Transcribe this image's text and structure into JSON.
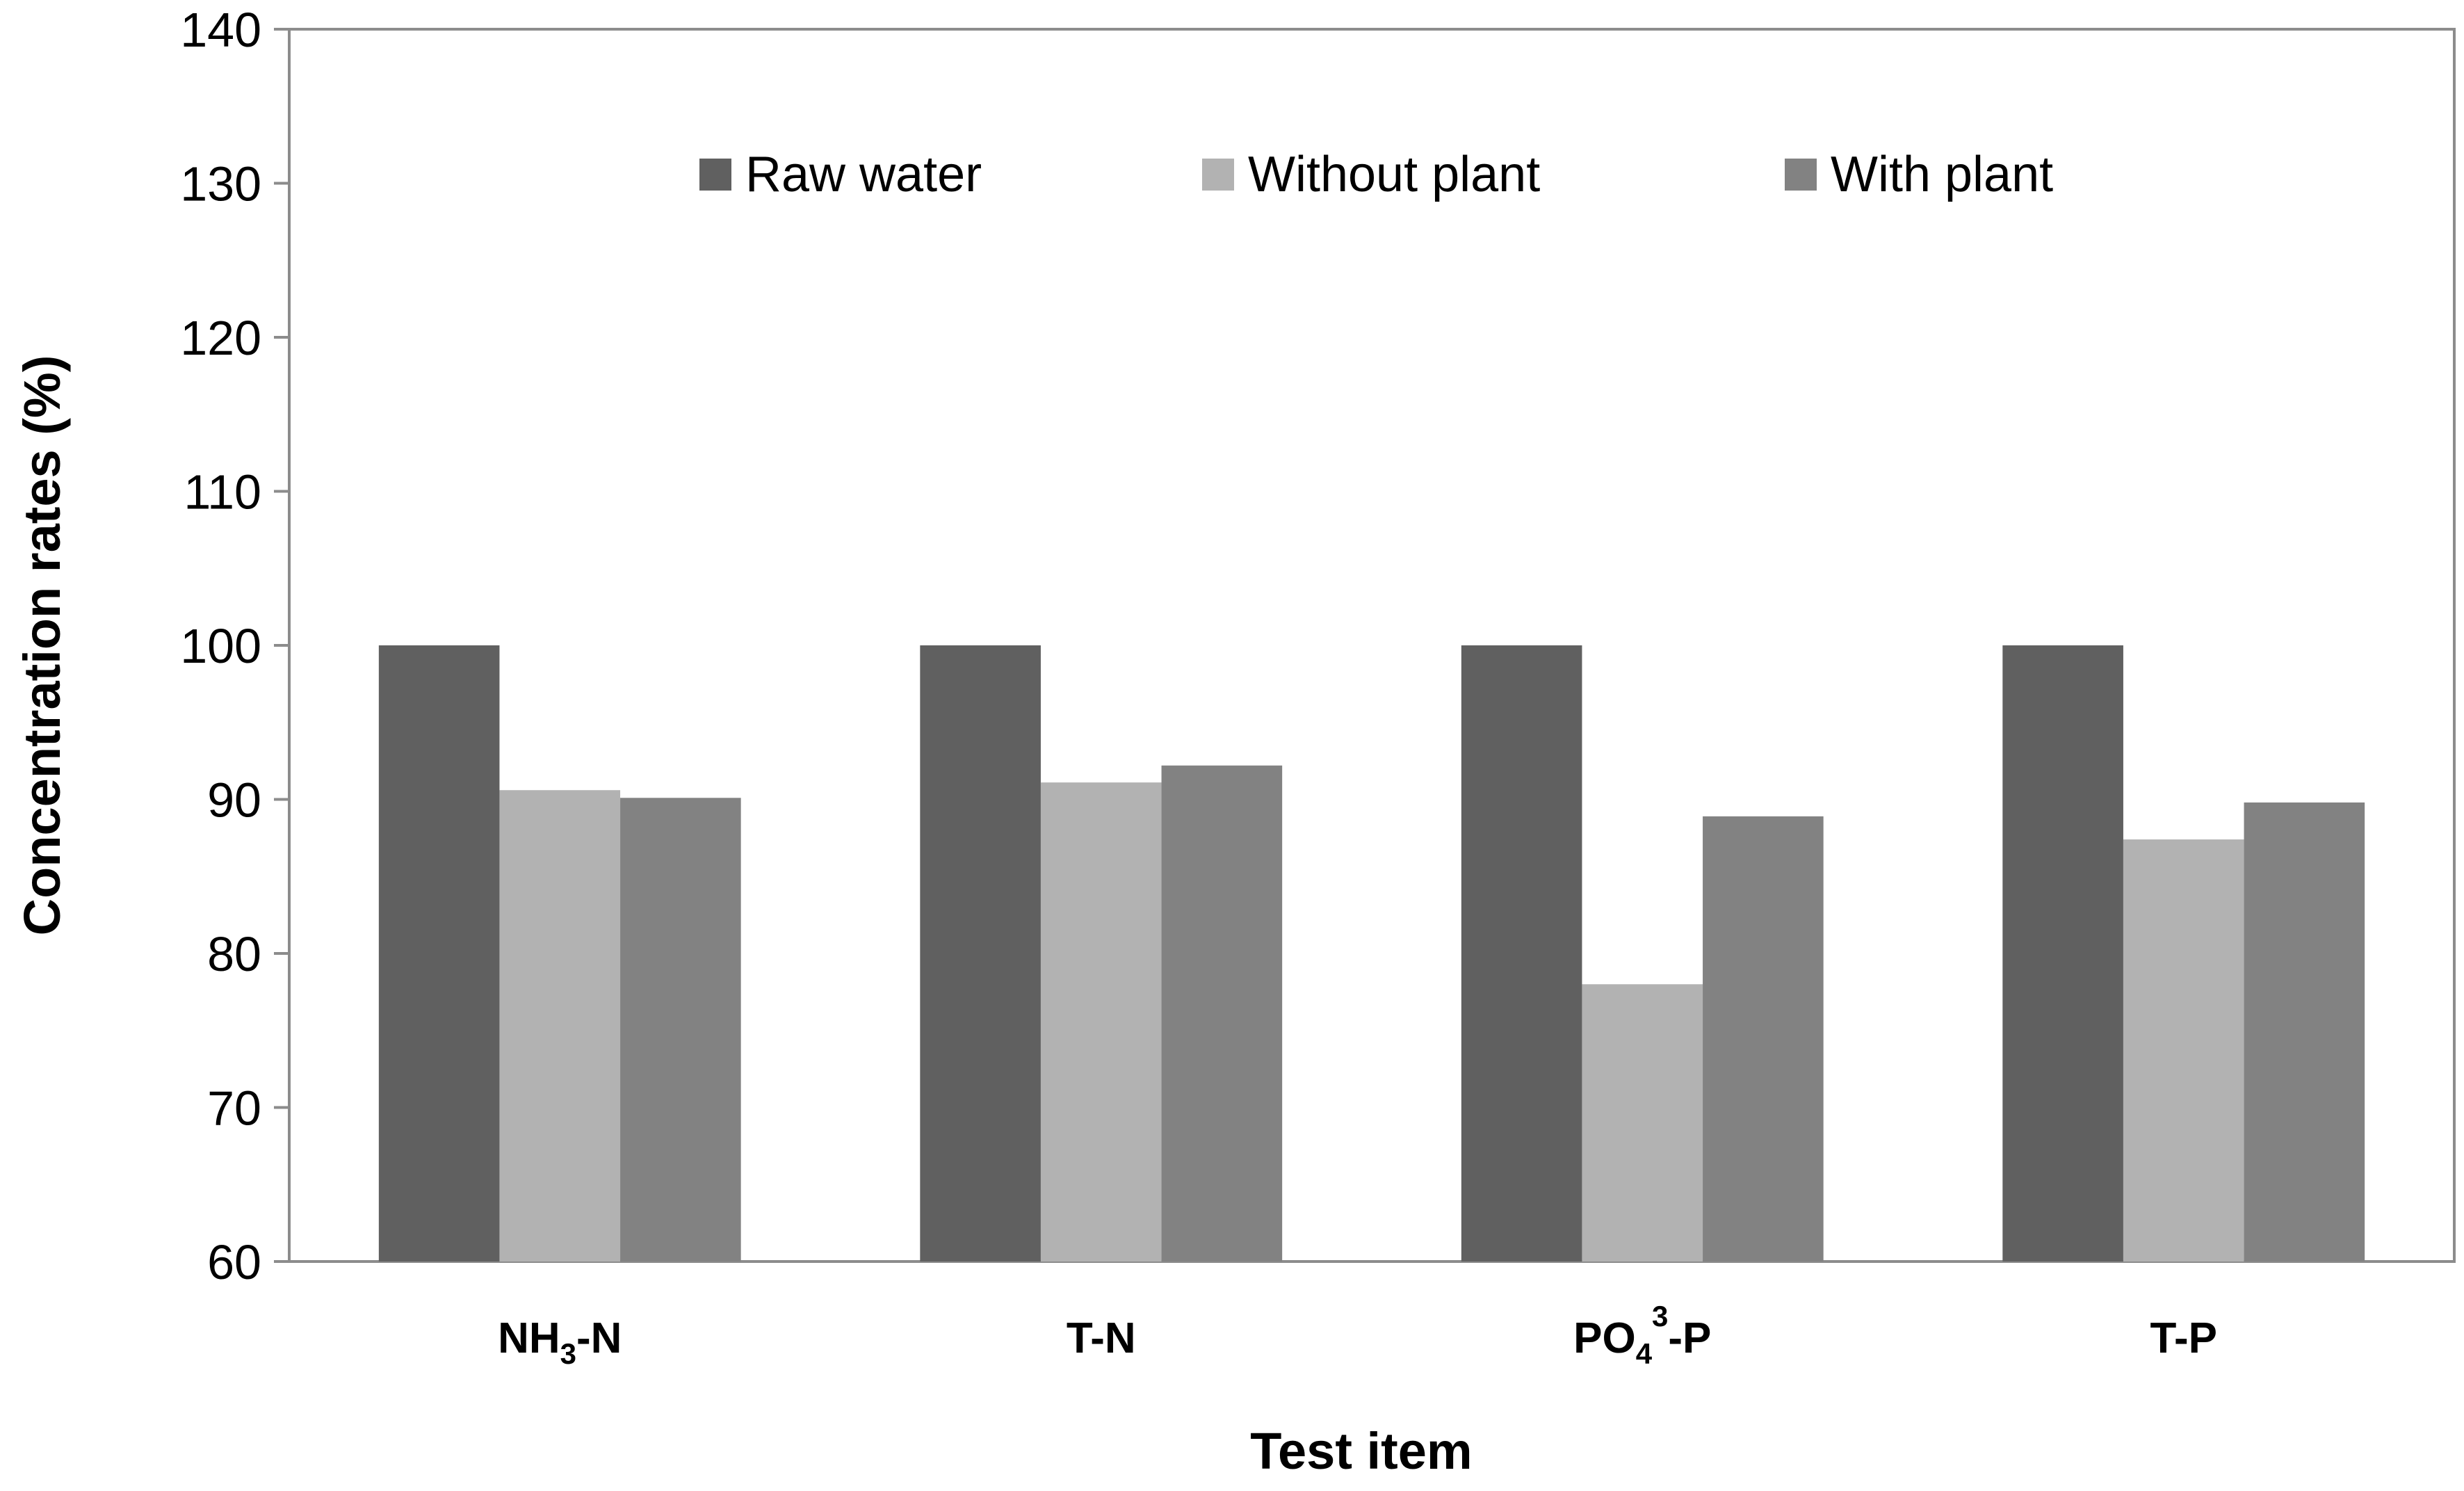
{
  "chart_data": {
    "type": "bar",
    "title": "",
    "xlabel": "Test item",
    "ylabel": "Concentration rates (%)",
    "ylim": [
      60,
      140
    ],
    "yticks": [
      "60",
      "70",
      "80",
      "90",
      "100",
      "110",
      "120",
      "130",
      "140"
    ],
    "categories": [
      {
        "base": "NH",
        "sub": "3",
        "sup": "",
        "suffix": "-N"
      },
      {
        "base": "T-N",
        "sub": "",
        "sup": "",
        "suffix": ""
      },
      {
        "base": "PO",
        "sub": "4",
        "sup": "3",
        "suffix": "-P"
      },
      {
        "base": "T-P",
        "sub": "",
        "sup": "",
        "suffix": ""
      }
    ],
    "series": [
      {
        "name": "Raw water",
        "color": "#606060",
        "values": [
          100,
          100,
          100,
          100
        ]
      },
      {
        "name": "Without plant",
        "color": "#b2b2b2",
        "values": [
          90.6,
          91.1,
          78.0,
          87.4
        ]
      },
      {
        "name": "With plant",
        "color": "#828282",
        "values": [
          90.1,
          92.2,
          88.9,
          89.8
        ]
      }
    ],
    "legend": "top-center",
    "grid": false
  }
}
